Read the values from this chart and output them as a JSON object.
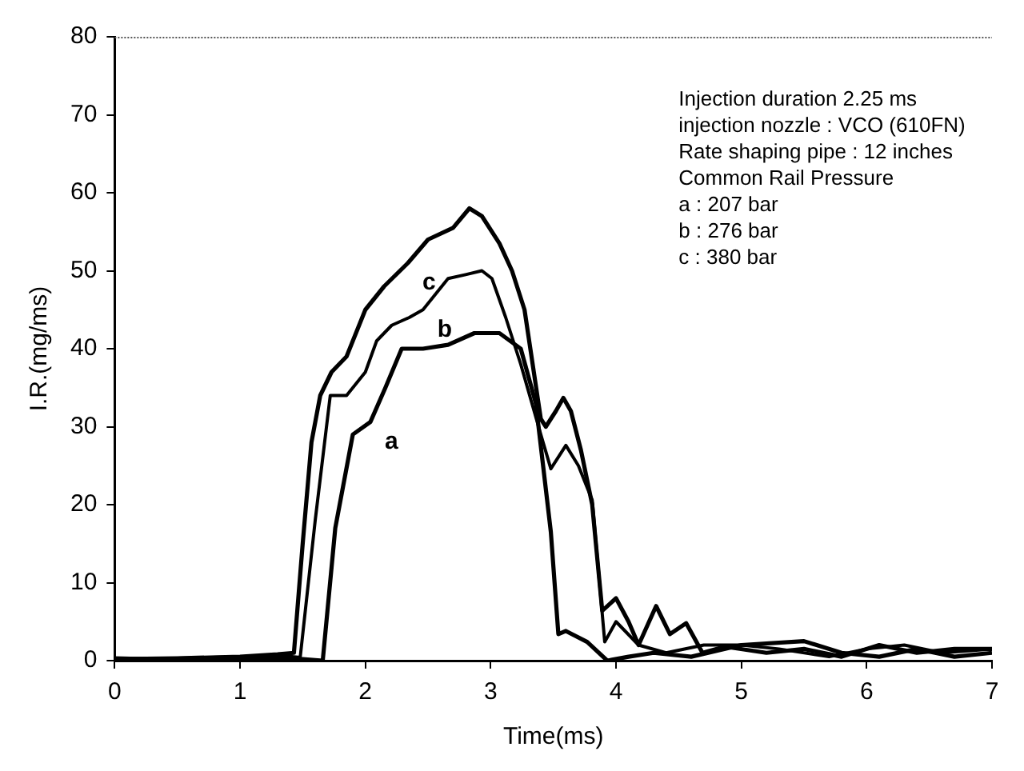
{
  "chart_data": {
    "type": "line",
    "xlabel": "Time(ms)",
    "ylabel": "I.R.(mg/ms)",
    "xlim": [
      0,
      7
    ],
    "xticks": [
      0,
      1,
      2,
      3,
      4,
      5,
      6,
      7
    ],
    "ylim": [
      0,
      80
    ],
    "yticks": [
      0,
      10,
      20,
      30,
      40,
      50,
      60,
      70,
      80
    ],
    "marker": "none",
    "line_style": "solid",
    "legend": false,
    "series": [
      {
        "color": "#000000",
        "x": [
          0,
          0.5,
          1,
          1.3,
          1.5,
          1.66,
          1.76,
          1.9,
          2.04,
          2.16,
          2.29,
          2.46,
          2.66,
          2.87,
          3.07,
          3.24,
          3.36,
          3.48,
          3.54,
          3.6,
          3.77,
          3.93,
          4.1,
          4.3,
          4.6,
          5.0,
          5.5,
          5.8,
          6.1,
          6.4,
          6.7,
          7.0
        ],
        "values": [
          0.3,
          0.1,
          0.2,
          0.3,
          0.2,
          0,
          17,
          29,
          30.6,
          35,
          40,
          40,
          40.5,
          42,
          42,
          40,
          33,
          16.5,
          3.4,
          3.8,
          2.4,
          0,
          0.5,
          1,
          0.5,
          2,
          2.5,
          1,
          0.5,
          1.5,
          0.5,
          1
        ]
      },
      {
        "color": "#000000",
        "x": [
          0,
          0.5,
          1,
          1.3,
          1.48,
          1.6,
          1.72,
          1.85,
          2.0,
          2.09,
          2.21,
          2.35,
          2.46,
          2.66,
          2.8,
          2.93,
          3.01,
          3.12,
          3.24,
          3.4,
          3.48,
          3.6,
          3.7,
          3.81,
          3.91,
          4.0,
          4.18,
          4.4,
          4.7,
          5.0,
          5.3,
          5.7,
          6.0,
          6.3,
          6.6,
          7.0
        ],
        "values": [
          0.2,
          0.3,
          0.5,
          0.7,
          0.4,
          18,
          34,
          34,
          37,
          41,
          43,
          44,
          45,
          49,
          49.5,
          50,
          49,
          44,
          38,
          29,
          24.6,
          27.6,
          25,
          20.6,
          2.4,
          5,
          2,
          1,
          2,
          2,
          1.5,
          0.5,
          1.5,
          2,
          1,
          1.5
        ]
      },
      {
        "color": "#000000",
        "x": [
          0,
          0.5,
          1,
          1.3,
          1.43,
          1.5,
          1.57,
          1.64,
          1.73,
          1.85,
          2.0,
          2.15,
          2.34,
          2.5,
          2.7,
          2.83,
          2.93,
          3.07,
          3.17,
          3.27,
          3.4,
          3.44,
          3.52,
          3.58,
          3.64,
          3.72,
          3.81,
          3.89,
          4.0,
          4.1,
          4.18,
          4.32,
          4.43,
          4.56,
          4.69,
          4.87,
          5.2,
          5.5,
          5.8,
          6.1,
          6.4,
          6.7,
          7.0
        ],
        "values": [
          0.2,
          0.3,
          0.5,
          0.8,
          1,
          15,
          28,
          34,
          37,
          39,
          45,
          48,
          51,
          54,
          55.5,
          58,
          57,
          53.5,
          50,
          45,
          31,
          30,
          32,
          33.7,
          32,
          27,
          20,
          6.4,
          8,
          5,
          2,
          7,
          3.4,
          4.8,
          1,
          1.8,
          1,
          1.5,
          0.5,
          2,
          1,
          1.5,
          1.5
        ]
      }
    ],
    "annotations": [
      {
        "text": "a",
        "x": 2.04,
        "y": 30.6
      },
      {
        "text": "b",
        "x": 2.46,
        "y": 45
      },
      {
        "text": "c",
        "x": 2.34,
        "y": 51
      },
      "Injection duration 2.25 ms",
      "injection nozzle : VCO (610FN)",
      "Rate shaping pipe : 12 inches",
      "Common Rail Pressure",
      "a : 207 bar",
      "b : 276 bar",
      "c : 380 bar"
    ]
  }
}
